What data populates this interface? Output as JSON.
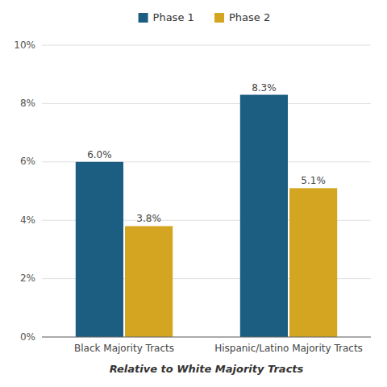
{
  "chart_data": {
    "type": "bar",
    "categories": [
      "Black Majority Tracts",
      "Hispanic/Latino Majority Tracts"
    ],
    "series": [
      {
        "name": "Phase 1",
        "color": "#1b5e82",
        "values": [
          6.0,
          8.3
        ],
        "value_labels": [
          "6.0%",
          "8.3%"
        ]
      },
      {
        "name": "Phase 2",
        "color": "#d4a520",
        "values": [
          3.8,
          5.1
        ],
        "value_labels": [
          "3.8%",
          "5.1%"
        ]
      }
    ],
    "x_label": "Relative to White Majority Tracts",
    "ylim": [
      0,
      10
    ],
    "yticks": [
      {
        "value": 0,
        "label": "0%"
      },
      {
        "value": 2,
        "label": "2%"
      },
      {
        "value": 4,
        "label": "4%"
      },
      {
        "value": 6,
        "label": "6%"
      },
      {
        "value": 8,
        "label": "8%"
      },
      {
        "value": 10,
        "label": "10%"
      }
    ],
    "grid": true,
    "data_labels": true,
    "legend": "top"
  }
}
